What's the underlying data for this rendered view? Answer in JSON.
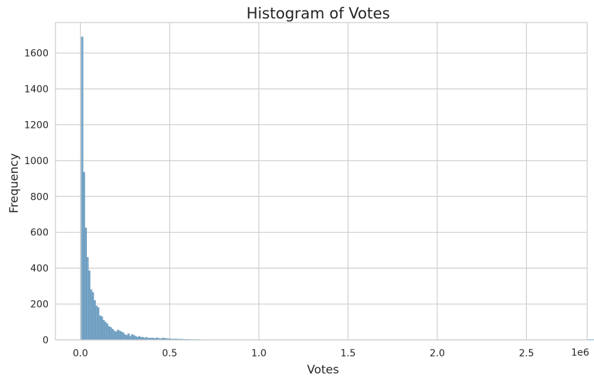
{
  "chart_data": {
    "type": "bar",
    "title": "Histogram of Votes",
    "xlabel": "Votes",
    "ylabel": "Frequency",
    "x_offset_label": "1e6",
    "xlim": [
      -0.14,
      2.84
    ],
    "ylim": [
      0,
      1770
    ],
    "x_ticks": [
      0.0,
      0.5,
      1.0,
      1.5,
      2.0,
      2.5
    ],
    "x_tick_labels": [
      "0.0",
      "0.5",
      "1.0",
      "1.5",
      "2.0",
      "2.5"
    ],
    "y_ticks": [
      0,
      200,
      400,
      600,
      800,
      1000,
      1200,
      1400,
      1600
    ],
    "y_tick_labels": [
      "0",
      "200",
      "400",
      "600",
      "800",
      "1000",
      "1200",
      "1400",
      "1600"
    ],
    "grid": true,
    "bin_start": 0.005,
    "bin_width": 0.01,
    "values": [
      1690,
      935,
      625,
      460,
      385,
      280,
      265,
      220,
      190,
      180,
      135,
      130,
      110,
      100,
      90,
      75,
      70,
      60,
      50,
      45,
      55,
      50,
      45,
      40,
      30,
      25,
      35,
      20,
      30,
      25,
      20,
      15,
      20,
      15,
      15,
      10,
      15,
      10,
      10,
      10,
      10,
      8,
      12,
      8,
      6,
      10,
      10,
      8,
      6,
      6,
      5,
      5,
      5,
      5,
      4,
      4,
      4,
      3,
      3,
      3,
      3,
      2,
      2,
      2,
      2,
      2,
      2,
      1,
      1,
      1,
      1,
      1,
      1,
      1,
      1,
      1,
      1,
      1,
      1,
      1,
      1,
      1,
      1,
      1,
      1,
      1,
      1,
      1,
      1,
      1,
      1,
      1,
      1,
      1,
      1,
      1,
      1,
      1,
      1,
      1,
      1,
      1,
      1,
      1,
      1,
      1,
      1,
      1,
      1,
      1,
      1,
      1,
      1,
      1,
      1,
      1,
      1,
      1,
      1,
      1,
      1,
      1,
      1,
      1,
      1,
      1,
      1,
      1,
      1,
      1,
      1,
      1,
      1,
      1,
      1,
      1,
      1,
      1,
      1,
      1,
      1,
      1,
      1,
      1,
      1,
      1,
      1,
      1,
      1,
      1,
      1,
      1,
      1,
      1,
      1,
      1,
      1,
      1,
      1,
      1,
      1,
      1,
      1,
      1,
      1,
      1,
      1,
      1,
      1,
      1,
      1,
      1,
      1,
      1,
      1,
      1,
      1,
      1,
      1,
      1,
      1,
      1,
      1,
      1,
      1,
      1,
      1,
      1,
      1,
      1,
      1,
      1,
      1,
      1,
      1,
      1,
      1,
      1,
      1,
      1,
      1,
      1,
      1,
      1,
      1,
      1,
      1,
      1,
      1,
      1,
      1,
      1,
      1,
      1,
      1,
      1,
      1,
      1,
      1,
      1,
      1,
      1,
      1,
      1,
      1,
      1,
      1,
      1,
      1,
      1,
      1,
      1,
      1,
      1,
      1,
      1,
      1,
      1,
      1,
      1,
      1,
      1,
      1,
      1,
      1,
      1,
      1,
      1,
      1,
      1,
      1,
      1,
      1,
      1,
      1,
      1,
      1,
      1,
      1,
      1,
      1,
      1,
      1,
      1,
      1,
      1,
      1,
      1,
      1,
      1,
      1,
      1,
      1,
      1,
      1,
      1,
      1,
      1,
      1,
      1,
      1,
      1,
      1,
      1,
      1,
      1,
      1,
      1,
      1,
      1,
      1,
      1,
      1,
      1,
      1,
      1
    ],
    "colors": {
      "bar_fill": "#7aa7c7",
      "bar_edge": "#5a8fb5",
      "grid": "#cccccc",
      "text": "#262626"
    }
  }
}
